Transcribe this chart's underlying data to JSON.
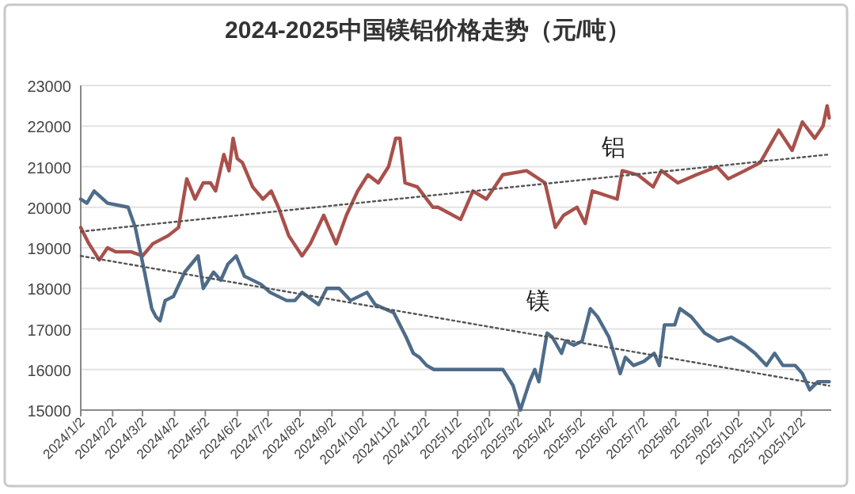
{
  "chart_data": {
    "type": "line",
    "title": "2024-2025中国镁铝价格走势（元/吨）",
    "xlim": [
      "2024-01-02",
      "2025-12-31"
    ],
    "xticks": [
      {
        "value": "2024-01-02",
        "label": "2024/1/2"
      },
      {
        "value": "2024-02-02",
        "label": "2024/2/2"
      },
      {
        "value": "2024-03-02",
        "label": "2024/3/2"
      },
      {
        "value": "2024-04-02",
        "label": "2024/4/2"
      },
      {
        "value": "2024-05-02",
        "label": "2024/5/2"
      },
      {
        "value": "2024-06-02",
        "label": "2024/6/2"
      },
      {
        "value": "2024-07-02",
        "label": "2024/7/2"
      },
      {
        "value": "2024-08-02",
        "label": "2024/8/2"
      },
      {
        "value": "2024-09-02",
        "label": "2024/9/2"
      },
      {
        "value": "2024-10-02",
        "label": "2024/10/2"
      },
      {
        "value": "2024-11-02",
        "label": "2024/11/2"
      },
      {
        "value": "2024-12-02",
        "label": "2024/12/2"
      },
      {
        "value": "2025-01-02",
        "label": "2025/1/2"
      },
      {
        "value": "2025-02-02",
        "label": "2025/2/2"
      },
      {
        "value": "2025-03-02",
        "label": "2025/3/2"
      },
      {
        "value": "2025-04-02",
        "label": "2025/4/2"
      },
      {
        "value": "2025-05-02",
        "label": "2025/5/2"
      },
      {
        "value": "2025-06-02",
        "label": "2025/6/2"
      },
      {
        "value": "2025-07-02",
        "label": "2025/7/2"
      },
      {
        "value": "2025-08-02",
        "label": "2025/8/2"
      },
      {
        "value": "2025-09-02",
        "label": "2025/9/2"
      },
      {
        "value": "2025-10-02",
        "label": "2025/10/2"
      },
      {
        "value": "2025-11-02",
        "label": "2025/11/2"
      },
      {
        "value": "2025-12-02",
        "label": "2025/12/2"
      }
    ],
    "ylim": [
      15000,
      23000
    ],
    "yticks": [
      15000,
      16000,
      17000,
      18000,
      19000,
      20000,
      21000,
      22000,
      23000
    ],
    "grid": "y",
    "legend": false,
    "marker": "none",
    "series": [
      {
        "name": "铝",
        "color": "#a9504b",
        "line_style": "solid",
        "x": [
          "2024-01-02",
          "2024-01-10",
          "2024-01-20",
          "2024-01-28",
          "2024-02-05",
          "2024-02-20",
          "2024-03-02",
          "2024-03-12",
          "2024-03-27",
          "2024-04-06",
          "2024-04-14",
          "2024-04-22",
          "2024-04-30",
          "2024-05-07",
          "2024-05-12",
          "2024-05-20",
          "2024-05-25",
          "2024-05-29",
          "2024-06-02",
          "2024-06-07",
          "2024-06-17",
          "2024-06-27",
          "2024-07-05",
          "2024-07-12",
          "2024-07-22",
          "2024-08-04",
          "2024-08-12",
          "2024-08-25",
          "2024-09-06",
          "2024-09-16",
          "2024-09-27",
          "2024-10-07",
          "2024-10-17",
          "2024-10-27",
          "2024-11-03",
          "2024-11-07",
          "2024-11-12",
          "2024-11-24",
          "2024-12-09",
          "2024-12-14",
          "2025-01-05",
          "2025-01-17",
          "2025-01-30",
          "2025-02-15",
          "2025-03-10",
          "2025-03-28",
          "2025-04-07",
          "2025-04-15",
          "2025-04-28",
          "2025-05-06",
          "2025-05-13",
          "2025-06-06",
          "2025-06-11",
          "2025-06-26",
          "2025-07-11",
          "2025-07-19",
          "2025-08-04",
          "2025-08-22",
          "2025-09-11",
          "2025-09-22",
          "2025-10-08",
          "2025-10-23",
          "2025-11-10",
          "2025-11-23",
          "2025-12-03",
          "2025-12-15",
          "2025-12-23",
          "2025-12-27",
          "2025-12-29"
        ],
        "values": [
          19500,
          19100,
          18700,
          19000,
          18900,
          18900,
          18800,
          19100,
          19300,
          19500,
          20700,
          20200,
          20600,
          20600,
          20400,
          21300,
          20900,
          21700,
          21200,
          21100,
          20500,
          20200,
          20400,
          20000,
          19300,
          18800,
          19100,
          19800,
          19100,
          19800,
          20400,
          20800,
          20600,
          21000,
          21700,
          21700,
          20600,
          20500,
          20000,
          20000,
          19700,
          20400,
          20200,
          20800,
          20900,
          20600,
          19500,
          19800,
          20000,
          19600,
          20400,
          20200,
          20900,
          20800,
          20500,
          20900,
          20600,
          20800,
          21000,
          20700,
          20900,
          21100,
          21900,
          21400,
          22100,
          21700,
          22000,
          22500,
          22200
        ]
      },
      {
        "name": "镁",
        "color": "#4e6c8a",
        "line_style": "solid",
        "x": [
          "2024-01-02",
          "2024-01-08",
          "2024-01-15",
          "2024-01-28",
          "2024-02-17",
          "2024-02-24",
          "2024-03-04",
          "2024-03-11",
          "2024-03-15",
          "2024-03-19",
          "2024-03-24",
          "2024-04-01",
          "2024-04-12",
          "2024-04-25",
          "2024-04-30",
          "2024-05-10",
          "2024-05-17",
          "2024-05-24",
          "2024-06-01",
          "2024-06-09",
          "2024-06-25",
          "2024-07-04",
          "2024-07-20",
          "2024-07-28",
          "2024-08-04",
          "2024-08-20",
          "2024-08-28",
          "2024-09-09",
          "2024-09-20",
          "2024-10-06",
          "2024-10-14",
          "2024-11-01",
          "2024-11-13",
          "2024-11-20",
          "2024-11-26",
          "2024-12-03",
          "2024-12-10",
          "2025-02-15",
          "2025-02-25",
          "2025-03-04",
          "2025-03-13",
          "2025-03-18",
          "2025-03-22",
          "2025-03-30",
          "2025-04-04",
          "2025-04-13",
          "2025-04-17",
          "2025-04-25",
          "2025-05-03",
          "2025-05-11",
          "2025-05-18",
          "2025-05-29",
          "2025-06-09",
          "2025-06-14",
          "2025-06-22",
          "2025-07-02",
          "2025-07-12",
          "2025-07-17",
          "2025-07-22",
          "2025-08-01",
          "2025-08-06",
          "2025-08-17",
          "2025-08-30",
          "2025-09-12",
          "2025-09-25",
          "2025-10-08",
          "2025-10-18",
          "2025-10-29",
          "2025-11-06",
          "2025-11-14",
          "2025-11-26",
          "2025-12-03",
          "2025-12-10",
          "2025-12-18",
          "2025-12-25",
          "2025-12-29"
        ],
        "values": [
          20200,
          20100,
          20400,
          20100,
          20000,
          19500,
          18400,
          17500,
          17300,
          17200,
          17700,
          17800,
          18400,
          18800,
          18000,
          18400,
          18200,
          18600,
          18800,
          18300,
          18100,
          17900,
          17700,
          17700,
          17900,
          17600,
          18000,
          18000,
          17700,
          17900,
          17600,
          17400,
          16800,
          16400,
          16300,
          16100,
          16000,
          16000,
          15600,
          15000,
          15700,
          16000,
          15700,
          16900,
          16800,
          16400,
          16700,
          16600,
          16700,
          17500,
          17300,
          16800,
          15900,
          16300,
          16100,
          16200,
          16400,
          16100,
          17100,
          17100,
          17500,
          17300,
          16900,
          16700,
          16800,
          16600,
          16400,
          16100,
          16400,
          16100,
          16100,
          15900,
          15500,
          15700,
          15700,
          15700
        ]
      },
      {
        "color": "#555555",
        "line_style": "dotted",
        "x": [
          "2024-01-02",
          "2025-12-29"
        ],
        "values": [
          19400,
          21300
        ]
      },
      {
        "color": "#555555",
        "line_style": "dotted",
        "x": [
          "2024-01-02",
          "2025-12-29"
        ],
        "values": [
          18800,
          15600
        ]
      }
    ]
  }
}
